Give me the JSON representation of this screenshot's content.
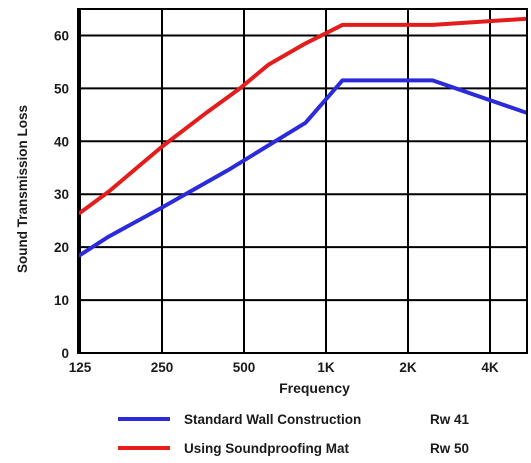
{
  "chart_data": {
    "type": "line",
    "xlabel": "Frequency",
    "ylabel": "Sound Transmission Loss",
    "ylim": [
      0,
      65
    ],
    "y_ticks": [
      0,
      10,
      20,
      30,
      40,
      50,
      60
    ],
    "x_positions": [
      0,
      1,
      2,
      3,
      4,
      5,
      6,
      7,
      8
    ],
    "x_tick_labels": [
      "125",
      "250",
      "500",
      "1K",
      "2K",
      "4K"
    ],
    "x_tick_positions": [
      0,
      1,
      2,
      3,
      4,
      5
    ],
    "xlim": [
      0,
      5.8
    ],
    "grid": true,
    "legend_position": "bottom",
    "series": [
      {
        "name": "Standard Wall Construction",
        "rating": "Rw 41",
        "color": "#2b2bdc",
        "x": [
          0,
          0.35,
          1,
          1.8,
          2.75,
          3.2,
          4.3,
          5.8
        ],
        "y": [
          18.5,
          22,
          27.5,
          34.5,
          43.5,
          51.5,
          51.5,
          43.5
        ]
      },
      {
        "name": "Using Soundproofing Mat",
        "rating": "Rw 50",
        "color": "#e31c1c",
        "x": [
          0,
          0.35,
          1,
          1.55,
          1.95,
          2.3,
          2.75,
          3.2,
          4.3,
          5.8
        ],
        "y": [
          26.5,
          30.5,
          39,
          45.5,
          50,
          54.5,
          58.5,
          62,
          62,
          63.5
        ]
      }
    ]
  }
}
